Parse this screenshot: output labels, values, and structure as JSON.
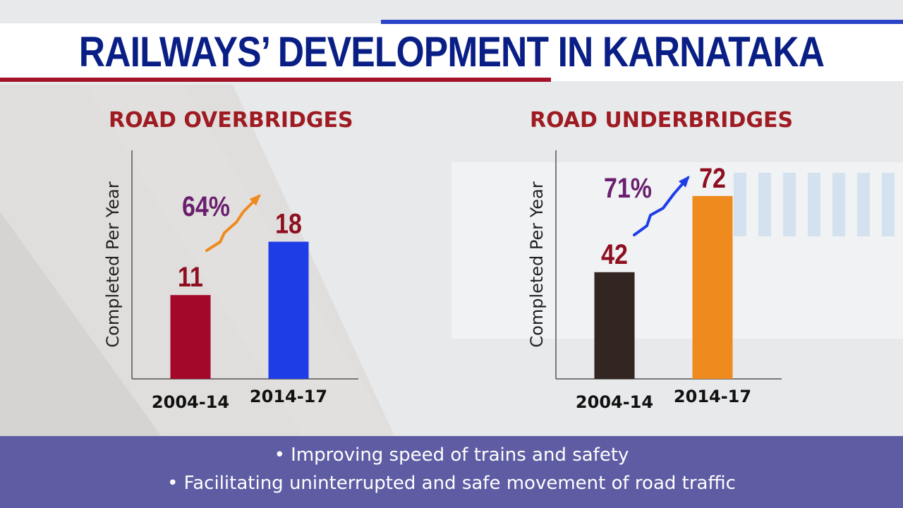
{
  "title": "RAILWAYS’ DEVELOPMENT IN KARNATAKA",
  "colors": {
    "title": "#0a1f86",
    "accent_red": "#a3132a",
    "accent_blue": "#2a44c8",
    "footer_bg": "#5e5ca3"
  },
  "chart_data": [
    {
      "type": "bar",
      "title": "ROAD OVERBRIDGES",
      "ylabel": "Completed Per Year",
      "categories": [
        "2004-14",
        "2014-17"
      ],
      "values": [
        11,
        18
      ],
      "value_labels": [
        "11",
        "18"
      ],
      "bar_colors": [
        "#a3072a",
        "#1f3de6"
      ],
      "change_label": "64%",
      "arrow_color": "#ef8a1e",
      "ylim": [
        0,
        30
      ],
      "grid": false
    },
    {
      "type": "bar",
      "title": "ROAD UNDERBRIDGES",
      "ylabel": "Completed Per Year",
      "categories": [
        "2004-14",
        "2014-17"
      ],
      "values": [
        42,
        72
      ],
      "value_labels": [
        "42",
        "72"
      ],
      "bar_colors": [
        "#332521",
        "#ef8a1e"
      ],
      "change_label": "71%",
      "arrow_color": "#1f3de6",
      "ylim": [
        0,
        90
      ],
      "grid": false
    }
  ],
  "footer": {
    "line1": "• Improving speed of trains and safety",
    "line2": "• Facilitating uninterrupted and safe movement of road traffic"
  }
}
